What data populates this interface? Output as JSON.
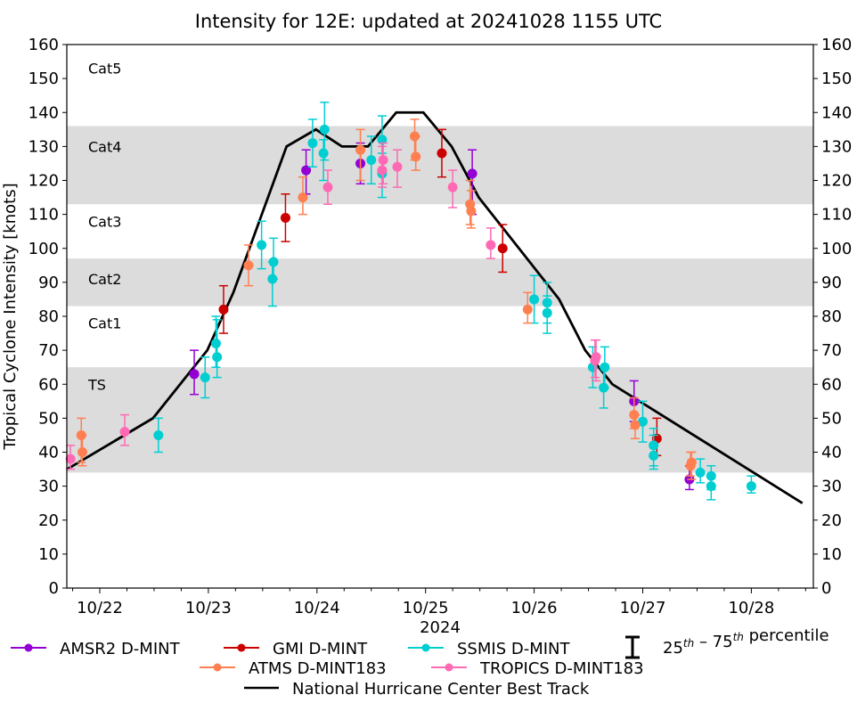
{
  "chart_data": {
    "type": "scatter",
    "title": "Intensity for 12E: updated at 20241028 1155 UTC",
    "xlabel": "2024",
    "ylabel": "Tropical Cyclone Intensity [knots]",
    "x_unit": "days since 10/22 00 UTC",
    "xlim": [
      -0.3,
      6.6
    ],
    "ylim": [
      0,
      160
    ],
    "yticks": [
      0,
      10,
      20,
      30,
      40,
      50,
      60,
      70,
      80,
      90,
      100,
      110,
      120,
      130,
      140,
      150,
      160
    ],
    "xticks": [
      {
        "x": 0,
        "label": "10/22"
      },
      {
        "x": 1,
        "label": "10/23"
      },
      {
        "x": 2,
        "label": "10/24"
      },
      {
        "x": 3,
        "label": "10/25"
      },
      {
        "x": 4,
        "label": "10/26"
      },
      {
        "x": 5,
        "label": "10/27"
      },
      {
        "x": 6,
        "label": "10/28"
      }
    ],
    "categories_bands": [
      {
        "label": "TS",
        "from": 34,
        "to": 64,
        "shaded": true
      },
      {
        "label": "Cat1",
        "from": 64,
        "to": 83,
        "shaded": false
      },
      {
        "label": "Cat2",
        "from": 83,
        "to": 96,
        "shaded": true
      },
      {
        "label": "Cat3",
        "from": 96,
        "to": 113,
        "shaded": false
      },
      {
        "label": "Cat4",
        "from": 113,
        "to": 135,
        "shaded": true
      },
      {
        "label": "Cat5",
        "from": 135,
        "to": 160,
        "shaded": false
      }
    ],
    "best_track": {
      "name": "National Hurricane Center Best Track",
      "color": "#000000",
      "x": [
        -0.3,
        0.49,
        0.99,
        1.23,
        1.72,
        1.99,
        2.23,
        2.47,
        2.73,
        2.98,
        3.24,
        3.49,
        4.23,
        4.47,
        4.72,
        6.47
      ],
      "y": [
        35,
        50,
        70,
        87,
        130,
        135,
        130,
        130,
        140,
        140,
        130,
        115,
        85,
        70,
        60,
        25
      ]
    },
    "series": [
      {
        "name": "AMSR2 D-MINT",
        "color": "#9400D3",
        "points": [
          {
            "x": 0.87,
            "y": 63,
            "lo": 57,
            "hi": 70
          },
          {
            "x": 1.9,
            "y": 123,
            "lo": 116,
            "hi": 129
          },
          {
            "x": 2.4,
            "y": 125,
            "lo": 119,
            "hi": 131
          },
          {
            "x": 3.43,
            "y": 122,
            "lo": 110,
            "hi": 129
          },
          {
            "x": 4.92,
            "y": 55,
            "lo": 49,
            "hi": 61
          },
          {
            "x": 5.43,
            "y": 32,
            "lo": 29,
            "hi": 36
          }
        ]
      },
      {
        "name": "GMI D-MINT",
        "color": "#CC0000",
        "points": [
          {
            "x": 1.14,
            "y": 82,
            "lo": 75,
            "hi": 89
          },
          {
            "x": 1.71,
            "y": 109,
            "lo": 102,
            "hi": 116
          },
          {
            "x": 3.15,
            "y": 128,
            "lo": 121,
            "hi": 135
          },
          {
            "x": 3.71,
            "y": 100,
            "lo": 93,
            "hi": 107
          },
          {
            "x": 5.13,
            "y": 44,
            "lo": 39,
            "hi": 50
          }
        ]
      },
      {
        "name": "SSMIS D-MINT",
        "color": "#00CED1",
        "points": [
          {
            "x": 0.54,
            "y": 45,
            "lo": 40,
            "hi": 50
          },
          {
            "x": 0.97,
            "y": 62,
            "lo": 56,
            "hi": 68
          },
          {
            "x": 1.07,
            "y": 72,
            "lo": 65,
            "hi": 80
          },
          {
            "x": 1.08,
            "y": 68,
            "lo": 62,
            "hi": 79
          },
          {
            "x": 1.49,
            "y": 101,
            "lo": 94,
            "hi": 108
          },
          {
            "x": 1.59,
            "y": 91,
            "lo": 83,
            "hi": 96
          },
          {
            "x": 1.6,
            "y": 96,
            "lo": 91,
            "hi": 103
          },
          {
            "x": 1.96,
            "y": 131,
            "lo": 124,
            "hi": 138
          },
          {
            "x": 2.06,
            "y": 128,
            "lo": 120,
            "hi": 132
          },
          {
            "x": 2.07,
            "y": 135,
            "lo": 126,
            "hi": 143
          },
          {
            "x": 2.5,
            "y": 126,
            "lo": 119,
            "hi": 133
          },
          {
            "x": 2.6,
            "y": 132,
            "lo": 122,
            "hi": 139
          },
          {
            "x": 2.6,
            "y": 122,
            "lo": 115,
            "hi": 128
          },
          {
            "x": 4.0,
            "y": 85,
            "lo": 78,
            "hi": 92
          },
          {
            "x": 4.12,
            "y": 84,
            "lo": 78,
            "hi": 90
          },
          {
            "x": 4.12,
            "y": 81,
            "lo": 75,
            "hi": 86
          },
          {
            "x": 4.54,
            "y": 65,
            "lo": 59,
            "hi": 71
          },
          {
            "x": 4.65,
            "y": 65,
            "lo": 59,
            "hi": 71
          },
          {
            "x": 4.64,
            "y": 59,
            "lo": 53,
            "hi": 65
          },
          {
            "x": 5.0,
            "y": 49,
            "lo": 43,
            "hi": 55
          },
          {
            "x": 5.1,
            "y": 42,
            "lo": 36,
            "hi": 47
          },
          {
            "x": 5.1,
            "y": 39,
            "lo": 35,
            "hi": 45
          },
          {
            "x": 5.53,
            "y": 34,
            "lo": 31,
            "hi": 38
          },
          {
            "x": 5.63,
            "y": 33,
            "lo": 29,
            "hi": 36
          },
          {
            "x": 5.63,
            "y": 30,
            "lo": 26,
            "hi": 33
          },
          {
            "x": 6.0,
            "y": 30,
            "lo": 28,
            "hi": 33
          }
        ]
      },
      {
        "name": "ATMS D-MINT183",
        "color": "#FF7F50",
        "points": [
          {
            "x": -0.17,
            "y": 45,
            "lo": 37,
            "hi": 50
          },
          {
            "x": -0.16,
            "y": 40,
            "lo": 36,
            "hi": 45
          },
          {
            "x": 1.37,
            "y": 95,
            "lo": 89,
            "hi": 101
          },
          {
            "x": 1.87,
            "y": 115,
            "lo": 110,
            "hi": 121
          },
          {
            "x": 2.4,
            "y": 129,
            "lo": 120,
            "hi": 135
          },
          {
            "x": 2.9,
            "y": 133,
            "lo": 126,
            "hi": 138
          },
          {
            "x": 2.91,
            "y": 127,
            "lo": 123,
            "hi": 133
          },
          {
            "x": 3.41,
            "y": 113,
            "lo": 107,
            "hi": 120
          },
          {
            "x": 3.42,
            "y": 111,
            "lo": 106,
            "hi": 117
          },
          {
            "x": 3.94,
            "y": 82,
            "lo": 78,
            "hi": 87
          },
          {
            "x": 4.92,
            "y": 51,
            "lo": 47,
            "hi": 56
          },
          {
            "x": 4.93,
            "y": 48,
            "lo": 44,
            "hi": 51
          },
          {
            "x": 5.44,
            "y": 36,
            "lo": 33,
            "hi": 40
          },
          {
            "x": 5.45,
            "y": 37,
            "lo": 32,
            "hi": 40
          }
        ]
      },
      {
        "name": "TROPICS D-MINT183",
        "color": "#FF69B4",
        "points": [
          {
            "x": -0.27,
            "y": 38,
            "lo": 35,
            "hi": 42
          },
          {
            "x": 0.23,
            "y": 46,
            "lo": 42,
            "hi": 51
          },
          {
            "x": 2.1,
            "y": 118,
            "lo": 113,
            "hi": 123
          },
          {
            "x": 2.61,
            "y": 126,
            "lo": 119,
            "hi": 131
          },
          {
            "x": 2.6,
            "y": 123,
            "lo": 118,
            "hi": 130
          },
          {
            "x": 2.74,
            "y": 124,
            "lo": 118,
            "hi": 129
          },
          {
            "x": 3.25,
            "y": 118,
            "lo": 112,
            "hi": 123
          },
          {
            "x": 3.6,
            "y": 101,
            "lo": 97,
            "hi": 106
          },
          {
            "x": 4.56,
            "y": 67,
            "lo": 62,
            "hi": 73
          },
          {
            "x": 4.57,
            "y": 68,
            "lo": 61,
            "hi": 73
          }
        ]
      }
    ],
    "legend": {
      "placement": "bottom",
      "percentile_label_a": "25",
      "percentile_sup_a": "th",
      "percentile_dash": " – ",
      "percentile_label_b": "75",
      "percentile_sup_b": "th",
      "percentile_tail": " percentile"
    }
  }
}
